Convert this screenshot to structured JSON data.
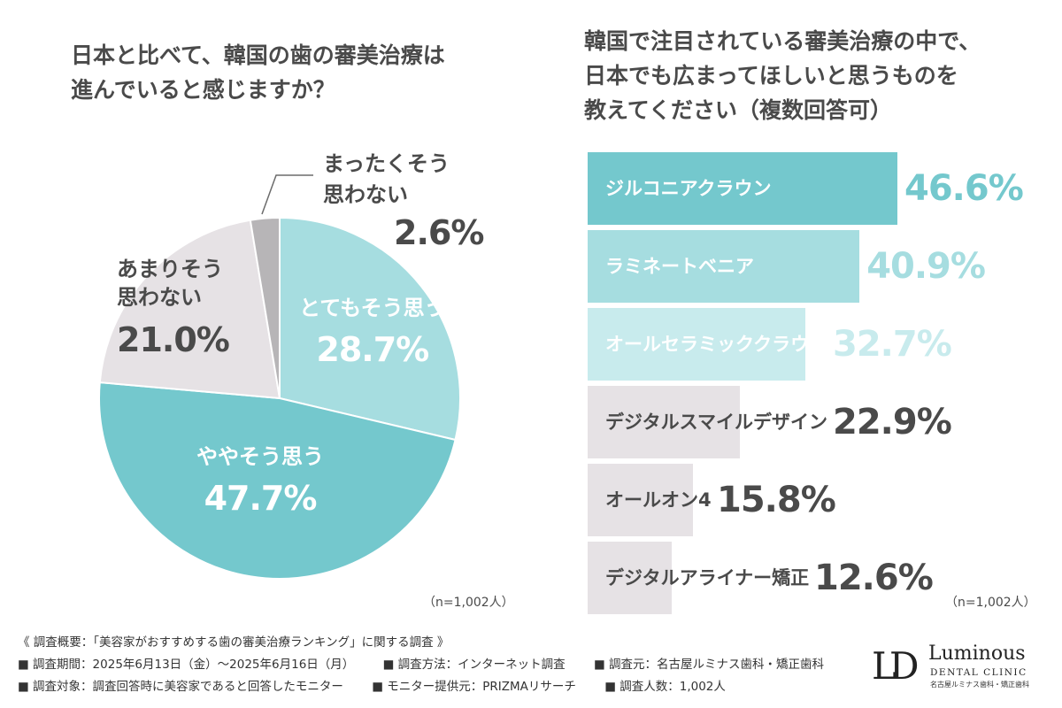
{
  "left_chart": {
    "title_line1": "日本と比べて、韓国の歯の審美治療は",
    "title_line2": "進んでいると感じますか？",
    "note": "（n=1,002人）"
  },
  "right_chart": {
    "title_line1": "韓国で注目されている審美治療の中で、",
    "title_line2": "日本でも広まってほしいと思うものを",
    "title_line3": "教えてください（複数回答可）",
    "note": "（n=1,002人）"
  },
  "chart_data": [
    {
      "type": "pie",
      "title": "日本と比べて、韓国の歯の審美治療は進んでいると感じますか？",
      "slices": [
        {
          "label": "とてもそう思う",
          "value": 28.7,
          "value_label": "28.7%",
          "color": "#a6dde0"
        },
        {
          "label": "ややそう思う",
          "value": 47.7,
          "value_label": "47.7%",
          "color": "#74c8cd"
        },
        {
          "label": "あまりそう思わない",
          "label_line1": "あまりそう",
          "label_line2": "思わない",
          "value": 21.0,
          "value_label": "21.0%",
          "color": "#e6e2e5"
        },
        {
          "label": "まったくそう思わない",
          "label_line1": "まったくそう",
          "label_line2": "思わない",
          "value": 2.6,
          "value_label": "2.6%",
          "color": "#b7b5b7"
        }
      ]
    },
    {
      "type": "bar",
      "orientation": "horizontal",
      "title": "韓国で注目されている審美治療の中で、日本でも広まってほしいと思うものを教えてください（複数回答可）",
      "xlim": [
        0,
        100
      ],
      "categories": [
        "ジルコニアクラウン",
        "ラミネートベニア",
        "オールセラミッククラウン",
        "デジタルスマイルデザイン",
        "オールオン4",
        "デジタルアライナー矯正"
      ],
      "values": [
        46.6,
        40.9,
        32.7,
        22.9,
        15.8,
        12.6
      ],
      "value_labels": [
        "46.6%",
        "40.9%",
        "32.7%",
        "22.9%",
        "15.8%",
        "12.6%"
      ],
      "bar_colors": [
        "#74c8cd",
        "#a6dde0",
        "#c8ebed",
        "#e6e2e5",
        "#e6e2e5",
        "#e6e2e5"
      ],
      "label_colors": [
        "#ffffff",
        "#ffffff",
        "#ffffff",
        "#4a4a4a",
        "#4a4a4a",
        "#4a4a4a"
      ],
      "value_colors": [
        "#74c8cd",
        "#a6dde0",
        "#c8ebed",
        "#4a4a4a",
        "#4a4a4a",
        "#4a4a4a"
      ]
    }
  ],
  "survey": {
    "heading": "《 調査概要：「美容家がおすすめする歯の審美治療ランキング」に関する調査 》",
    "period": "■ 調査期間：2025年6月13日（金）〜2025年6月16日（月）",
    "method": "■ 調査方法：インターネット調査",
    "source": "■ 調査元：名古屋ルミナス歯科・矯正歯科",
    "target": "■ 調査対象：調査回答時に美容家であると回答したモニター",
    "provider": "■ モニター提供元：PRIZMAリサーチ",
    "count": "■ 調査人数：1,002人"
  },
  "logo": {
    "mark": "LD",
    "name": "Luminous",
    "sub": "DENTAL CLINIC",
    "tag": "名古屋ルミナス歯科・矯正歯科"
  }
}
